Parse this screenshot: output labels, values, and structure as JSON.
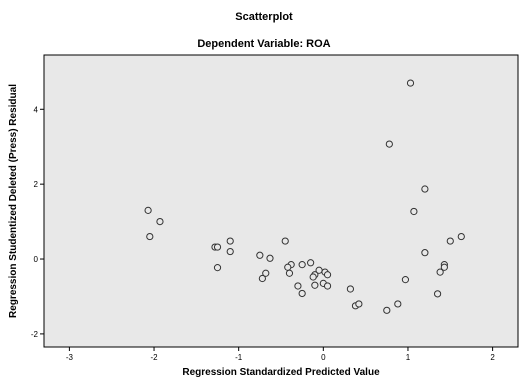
{
  "chart_data": {
    "type": "scatter",
    "title": "Scatterplot",
    "subtitle": "Dependent Variable: ROA",
    "xlabel": "Regression Standardized Predicted Value",
    "ylabel": "Regression Studentized Deleted (Press) Residual",
    "xlim": [
      -3.3,
      2.3
    ],
    "ylim": [
      -2.35,
      5.45
    ],
    "x_ticks": [
      -3,
      -2,
      -1,
      0,
      1,
      2
    ],
    "y_ticks": [
      -2,
      0,
      2,
      4
    ],
    "grid": false,
    "legend": "none",
    "colors": {
      "plot_background": "#e8e8e8",
      "marker_stroke": "#333333",
      "marker_fill": "#e8e8e8",
      "frame": "#000000"
    },
    "points": [
      {
        "x": -2.07,
        "y": 1.3
      },
      {
        "x": -1.93,
        "y": 1.0
      },
      {
        "x": -2.05,
        "y": 0.6
      },
      {
        "x": -1.28,
        "y": 0.32
      },
      {
        "x": -1.25,
        "y": 0.32
      },
      {
        "x": -1.1,
        "y": 0.48
      },
      {
        "x": -1.1,
        "y": 0.2
      },
      {
        "x": -1.25,
        "y": -0.23
      },
      {
        "x": -0.75,
        "y": 0.1
      },
      {
        "x": -0.63,
        "y": 0.02
      },
      {
        "x": -0.45,
        "y": 0.48
      },
      {
        "x": -0.38,
        "y": -0.15
      },
      {
        "x": -0.42,
        "y": -0.22
      },
      {
        "x": -0.4,
        "y": -0.38
      },
      {
        "x": -0.68,
        "y": -0.38
      },
      {
        "x": -0.72,
        "y": -0.52
      },
      {
        "x": -0.25,
        "y": -0.15
      },
      {
        "x": -0.15,
        "y": -0.1
      },
      {
        "x": -0.1,
        "y": -0.42
      },
      {
        "x": -0.12,
        "y": -0.48
      },
      {
        "x": -0.05,
        "y": -0.3
      },
      {
        "x": 0.02,
        "y": -0.35
      },
      {
        "x": 0.05,
        "y": -0.42
      },
      {
        "x": -0.3,
        "y": -0.72
      },
      {
        "x": -0.1,
        "y": -0.7
      },
      {
        "x": 0.0,
        "y": -0.65
      },
      {
        "x": 0.05,
        "y": -0.72
      },
      {
        "x": -0.25,
        "y": -0.92
      },
      {
        "x": 0.32,
        "y": -0.8
      },
      {
        "x": 0.38,
        "y": -1.25
      },
      {
        "x": 0.42,
        "y": -1.2
      },
      {
        "x": 0.75,
        "y": -1.37
      },
      {
        "x": 0.88,
        "y": -1.2
      },
      {
        "x": 0.97,
        "y": -0.55
      },
      {
        "x": 0.78,
        "y": 3.07
      },
      {
        "x": 1.03,
        "y": 4.7
      },
      {
        "x": 1.07,
        "y": 1.27
      },
      {
        "x": 1.2,
        "y": 1.87
      },
      {
        "x": 1.2,
        "y": 0.17
      },
      {
        "x": 1.35,
        "y": -0.93
      },
      {
        "x": 1.38,
        "y": -0.35
      },
      {
        "x": 1.43,
        "y": -0.15
      },
      {
        "x": 1.43,
        "y": -0.22
      },
      {
        "x": 1.5,
        "y": 0.48
      },
      {
        "x": 1.63,
        "y": 0.6
      }
    ]
  }
}
